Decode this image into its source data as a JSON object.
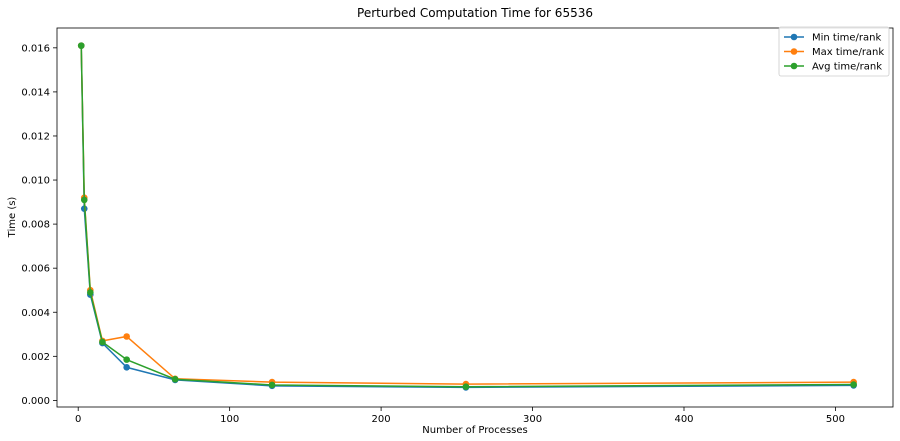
{
  "chart_data": {
    "type": "line",
    "title": "Perturbed Computation Time for 65536",
    "xlabel": "Number of Processes",
    "ylabel": "Time (s)",
    "x": [
      2,
      4,
      8,
      16,
      32,
      64,
      128,
      256,
      512
    ],
    "xlim": [
      -14,
      538
    ],
    "ylim": [
      -0.0003,
      0.0169
    ],
    "xticks": [
      0,
      100,
      200,
      300,
      400,
      500
    ],
    "xtick_labels": [
      "0",
      "100",
      "200",
      "300",
      "400",
      "500"
    ],
    "yticks": [
      0.0,
      0.002,
      0.004,
      0.006,
      0.008,
      0.01,
      0.012,
      0.014,
      0.016
    ],
    "ytick_labels": [
      "0.000",
      "0.002",
      "0.004",
      "0.006",
      "0.008",
      "0.010",
      "0.012",
      "0.014",
      "0.016"
    ],
    "grid": false,
    "legend_position": "top-right",
    "series": [
      {
        "name": "Min time/rank",
        "color": "#1f77b4",
        "values": [
          0.0161,
          0.0087,
          0.0048,
          0.0026,
          0.0015,
          0.00093,
          0.00066,
          0.00059,
          0.00068
        ]
      },
      {
        "name": "Max time/rank",
        "color": "#ff7f0e",
        "values": [
          0.0161,
          0.0092,
          0.005,
          0.0027,
          0.0029,
          0.00098,
          0.00083,
          0.00074,
          0.00083
        ]
      },
      {
        "name": "Avg time/rank",
        "color": "#2ca02c",
        "values": [
          0.0161,
          0.0091,
          0.0049,
          0.00265,
          0.00185,
          0.00096,
          0.0007,
          0.00062,
          0.00072
        ]
      }
    ]
  }
}
